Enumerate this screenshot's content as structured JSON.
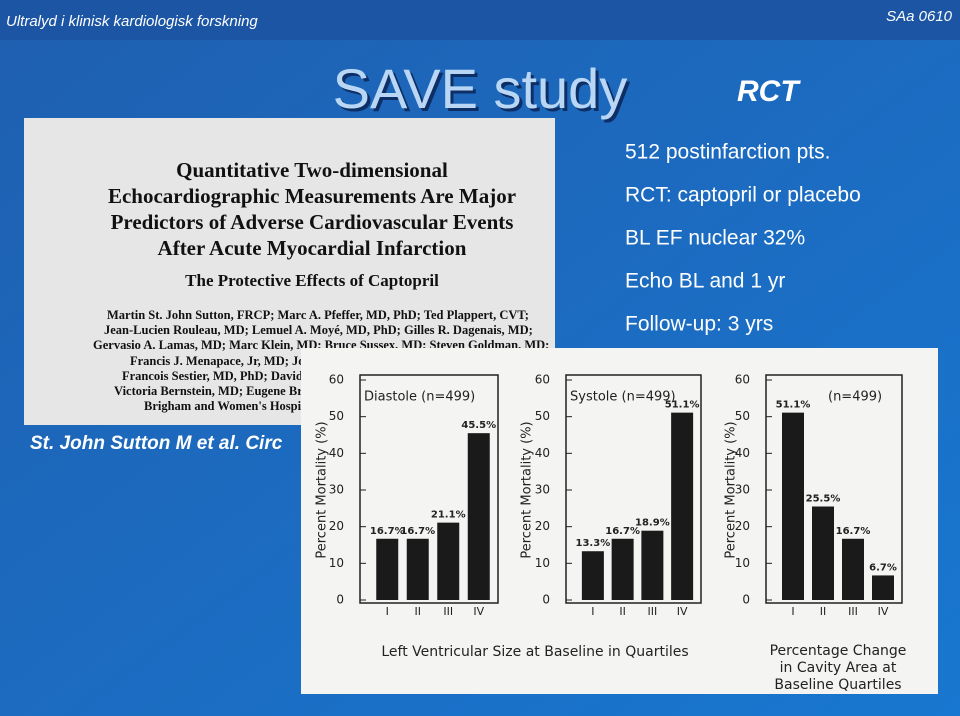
{
  "header": {
    "left": "Ultralyd i klinisk kardiologisk forskning",
    "right": "SAa 0610"
  },
  "title": "SAVE study",
  "tag": "RCT",
  "paper": {
    "title_lines": [
      "Quantitative Two-dimensional",
      "Echocardiographic Measurements Are Major",
      "Predictors of Adverse Cardiovascular Events",
      "After Acute Myocardial Infarction"
    ],
    "subtitle": "The Protective Effects of Captopril",
    "authors": [
      "Martin St. John Sutton, FRCP; Marc A. Pfeffer, MD, PhD; Ted Plappert, CVT;",
      "Jean-Lucien Rouleau, MD; Lemuel A. Moyé, MD, PhD; Gilles R. Dagenais, MD;",
      "Gervasio A. Lamas, MD; Marc Klein, MD; Bruce Sussex, MD; Steven Goldman, MD;",
      "Francis J. Menapace, Jr, MD; Joh",
      "Francois Sestier, MD, PhD; David I",
      "Victoria Bernstein, MD; Eugene Bra",
      "Brigham and Women's Hospita"
    ]
  },
  "citation": "St. John Sutton M et al. Circ",
  "bullets": [
    "512 postinfarction pts.",
    "RCT: captopril or placebo",
    "BL EF nuclear 32%",
    "Echo BL and 1 yr",
    "Follow-up: 3 yrs"
  ],
  "chart_data": [
    {
      "type": "bar",
      "title": "Diastole (n=499)",
      "y_label": "Percent Mortality (%)",
      "categories": [
        "I",
        "II",
        "III",
        "IV"
      ],
      "values": [
        16.7,
        16.7,
        21.1,
        45.5
      ],
      "value_labels": [
        "16.7%",
        "16.7%",
        "21.1%",
        "45.5%"
      ],
      "color": "#1a1a1a",
      "ylim": [
        0,
        60
      ],
      "yticks": [
        0,
        10,
        20,
        30,
        40,
        50,
        60
      ]
    },
    {
      "type": "bar",
      "title": "Systole (n=499)",
      "y_label": "Percent Mortality (%)",
      "categories": [
        "I",
        "II",
        "III",
        "IV"
      ],
      "values": [
        13.3,
        16.7,
        18.9,
        51.1
      ],
      "value_labels": [
        "13.3%",
        "16.7%",
        "18.9%",
        "51.1%"
      ],
      "color": "#1a1a1a",
      "ylim": [
        0,
        60
      ],
      "yticks": [
        0,
        10,
        20,
        30,
        40,
        50,
        60
      ]
    },
    {
      "type": "bar",
      "title": "(n=499)",
      "y_label": "Percent Mortality (%)",
      "categories": [
        "I",
        "II",
        "III",
        "IV"
      ],
      "values": [
        51.1,
        25.5,
        16.7,
        6.7
      ],
      "value_labels": [
        "51.1%",
        "25.5%",
        "16.7%",
        "6.7%"
      ],
      "color": "#1a1a1a",
      "ylim": [
        0,
        60
      ],
      "yticks": [
        0,
        10,
        20,
        30,
        40,
        50,
        60
      ]
    }
  ],
  "captions": {
    "x_axis": "Left Ventricular Size at Baseline in Quartiles",
    "right": [
      "Percentage Change",
      "in Cavity Area at",
      "Baseline Quartiles"
    ]
  }
}
